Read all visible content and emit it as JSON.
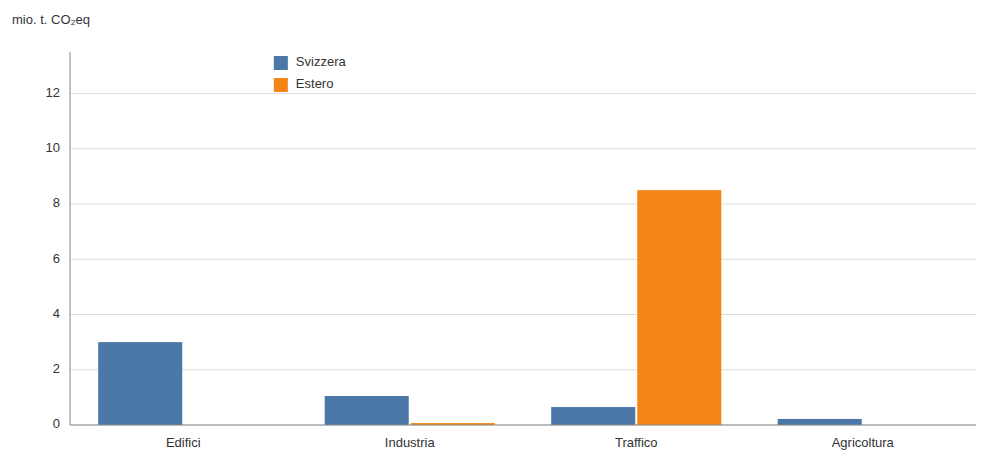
{
  "chart_data": {
    "type": "bar",
    "y_label": "mio. t. CO₂eq",
    "categories": [
      "Edifici",
      "Industria",
      "Traffico",
      "Agricoltura"
    ],
    "series": [
      {
        "name": "Svizzera",
        "values": [
          3.0,
          1.05,
          0.65,
          0.22
        ]
      },
      {
        "name": "Estero",
        "values": [
          0.0,
          0.07,
          8.5,
          0.0
        ]
      }
    ],
    "ylim": [
      0,
      13.5
    ],
    "yticks": [
      0,
      2,
      4,
      6,
      8,
      10,
      12
    ],
    "grid": true,
    "legend": "upper left"
  }
}
